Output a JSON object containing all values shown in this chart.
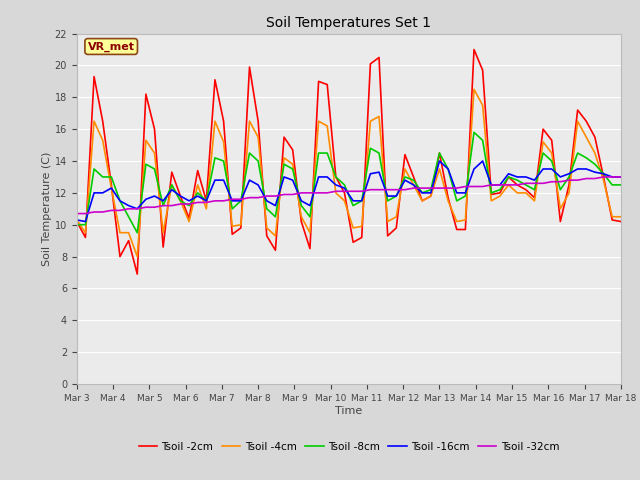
{
  "title": "Soil Temperatures Set 1",
  "xlabel": "Time",
  "ylabel": "Soil Temperature (C)",
  "ylim": [
    0,
    22
  ],
  "yticks": [
    0,
    2,
    4,
    6,
    8,
    10,
    12,
    14,
    16,
    18,
    20,
    22
  ],
  "bg_color": "#d8d8d8",
  "plot_bg_color": "#ebebeb",
  "annotation_text": "VR_met",
  "annotation_bg": "#ffff99",
  "annotation_border": "#8B4513",
  "annotation_text_color": "#8B0000",
  "legend_labels": [
    "Tsoil -2cm",
    "Tsoil -4cm",
    "Tsoil -8cm",
    "Tsoil -16cm",
    "Tsoil -32cm"
  ],
  "line_colors": [
    "#ff0000",
    "#ff8c00",
    "#00cc00",
    "#0000ff",
    "#cc00cc"
  ],
  "line_widths": [
    1.2,
    1.2,
    1.2,
    1.2,
    1.2
  ],
  "xtick_labels": [
    "Mar 3",
    "Mar 4",
    "Mar 5",
    "Mar 6",
    "Mar 7",
    "Mar 8",
    "Mar 9",
    "Mar 10",
    "Mar 11",
    "Mar 12",
    "Mar 13",
    "Mar 14",
    "Mar 15",
    "Mar 16",
    "Mar 17",
    "Mar 18"
  ],
  "num_days": 16,
  "tsoil_2cm": [
    10.2,
    9.2,
    19.3,
    16.5,
    12.5,
    8.0,
    9.0,
    6.9,
    18.2,
    16.0,
    8.6,
    13.3,
    11.8,
    10.4,
    13.4,
    11.5,
    19.1,
    16.5,
    9.4,
    9.8,
    19.9,
    16.5,
    9.3,
    8.4,
    15.5,
    14.7,
    10.2,
    8.5,
    19.0,
    18.8,
    13.0,
    12.0,
    8.9,
    9.2,
    20.1,
    20.5,
    9.3,
    9.8,
    14.4,
    13.0,
    11.5,
    11.8,
    14.5,
    11.7,
    9.7,
    9.7,
    21.0,
    19.7,
    11.9,
    12.0,
    13.0,
    12.5,
    12.2,
    11.7,
    16.0,
    15.3,
    10.2,
    12.5,
    17.2,
    16.5,
    15.5,
    13.0,
    10.3,
    10.2
  ],
  "tsoil_4cm": [
    10.3,
    9.5,
    16.5,
    15.3,
    12.3,
    9.5,
    9.5,
    8.0,
    15.3,
    14.5,
    9.5,
    12.5,
    11.5,
    10.2,
    12.5,
    11.0,
    16.5,
    15.2,
    9.9,
    10.0,
    16.5,
    15.5,
    9.8,
    9.3,
    14.2,
    13.8,
    10.5,
    9.5,
    16.5,
    16.2,
    12.0,
    11.5,
    9.8,
    9.9,
    16.5,
    16.8,
    10.2,
    10.5,
    13.5,
    12.5,
    11.5,
    11.8,
    13.5,
    11.5,
    10.2,
    10.3,
    18.5,
    17.5,
    11.5,
    11.8,
    12.5,
    12.0,
    12.0,
    11.5,
    15.2,
    14.5,
    11.0,
    12.0,
    16.5,
    15.5,
    14.5,
    12.8,
    10.5,
    10.5
  ],
  "tsoil_8cm": [
    10.0,
    10.0,
    13.5,
    13.0,
    13.0,
    11.5,
    10.5,
    9.5,
    13.8,
    13.5,
    11.2,
    12.5,
    11.5,
    11.2,
    12.0,
    11.5,
    14.2,
    14.0,
    11.0,
    11.5,
    14.5,
    14.0,
    11.0,
    10.5,
    13.8,
    13.5,
    11.2,
    10.5,
    14.5,
    14.5,
    13.0,
    12.5,
    11.2,
    11.5,
    14.8,
    14.5,
    11.5,
    11.8,
    13.0,
    12.8,
    12.0,
    12.2,
    14.5,
    13.5,
    11.5,
    11.8,
    15.8,
    15.3,
    12.0,
    12.2,
    13.0,
    12.8,
    12.5,
    12.2,
    14.5,
    14.0,
    12.2,
    13.0,
    14.5,
    14.2,
    13.8,
    13.2,
    12.5,
    12.5
  ],
  "tsoil_16cm": [
    10.3,
    10.2,
    12.0,
    12.0,
    12.3,
    11.5,
    11.2,
    11.0,
    11.6,
    11.8,
    11.5,
    12.2,
    11.8,
    11.5,
    11.8,
    11.5,
    12.8,
    12.8,
    11.5,
    11.5,
    12.8,
    12.5,
    11.5,
    11.2,
    13.0,
    12.8,
    11.5,
    11.2,
    13.0,
    13.0,
    12.5,
    12.3,
    11.5,
    11.5,
    13.2,
    13.3,
    11.8,
    11.8,
    12.8,
    12.5,
    12.0,
    12.0,
    14.0,
    13.5,
    12.0,
    12.0,
    13.5,
    14.0,
    12.5,
    12.5,
    13.2,
    13.0,
    13.0,
    12.8,
    13.5,
    13.5,
    13.0,
    13.2,
    13.5,
    13.5,
    13.3,
    13.2,
    13.0,
    13.0
  ],
  "tsoil_32cm": [
    10.7,
    10.7,
    10.8,
    10.8,
    10.9,
    10.9,
    11.0,
    11.0,
    11.1,
    11.1,
    11.2,
    11.2,
    11.3,
    11.3,
    11.4,
    11.4,
    11.5,
    11.5,
    11.6,
    11.6,
    11.7,
    11.7,
    11.8,
    11.8,
    11.9,
    11.9,
    12.0,
    12.0,
    12.0,
    12.0,
    12.1,
    12.1,
    12.1,
    12.1,
    12.2,
    12.2,
    12.2,
    12.2,
    12.2,
    12.3,
    12.3,
    12.3,
    12.3,
    12.3,
    12.3,
    12.4,
    12.4,
    12.4,
    12.5,
    12.5,
    12.5,
    12.5,
    12.6,
    12.6,
    12.6,
    12.7,
    12.7,
    12.8,
    12.8,
    12.9,
    12.9,
    13.0,
    13.0,
    13.0
  ]
}
